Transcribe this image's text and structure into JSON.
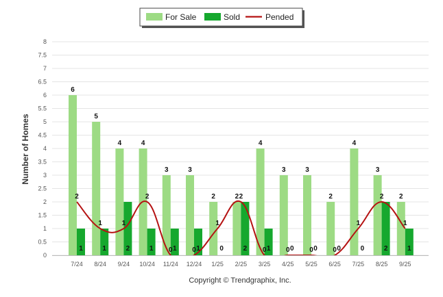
{
  "chart_data": {
    "type": "bar",
    "ylabel": "Number of Homes",
    "xlabel": "",
    "ylim": [
      0,
      8
    ],
    "yticks": [
      "0",
      "0.5",
      "1",
      "1.5",
      "2",
      "2.5",
      "3",
      "3.5",
      "4",
      "4.5",
      "5",
      "5.5",
      "6",
      "6.5",
      "7",
      "7.5",
      "8"
    ],
    "grid": true,
    "legend_position": "top-center",
    "categories": [
      "7/24",
      "8/24",
      "9/24",
      "10/24",
      "11/24",
      "12/24",
      "1/25",
      "2/25",
      "3/25",
      "4/25",
      "5/25",
      "6/25",
      "7/25",
      "8/25",
      "9/25"
    ],
    "series": [
      {
        "name": "For Sale",
        "kind": "bar",
        "color": "#9ddb84",
        "values": [
          6,
          5,
          4,
          4,
          3,
          3,
          2,
          2,
          4,
          3,
          3,
          2,
          4,
          3,
          2
        ]
      },
      {
        "name": "Sold",
        "kind": "bar",
        "color": "#16a82e",
        "values": [
          1,
          1,
          2,
          1,
          1,
          1,
          0,
          2,
          1,
          0,
          0,
          0,
          0,
          2,
          1
        ]
      },
      {
        "name": "Pended",
        "kind": "line",
        "color": "#b51212",
        "values": [
          2,
          1,
          1,
          2,
          0,
          0,
          1,
          2,
          0,
          0,
          0,
          0,
          1,
          2,
          1
        ]
      }
    ]
  },
  "footer": {
    "copyright": "Copyright © Trendgraphix, Inc."
  }
}
